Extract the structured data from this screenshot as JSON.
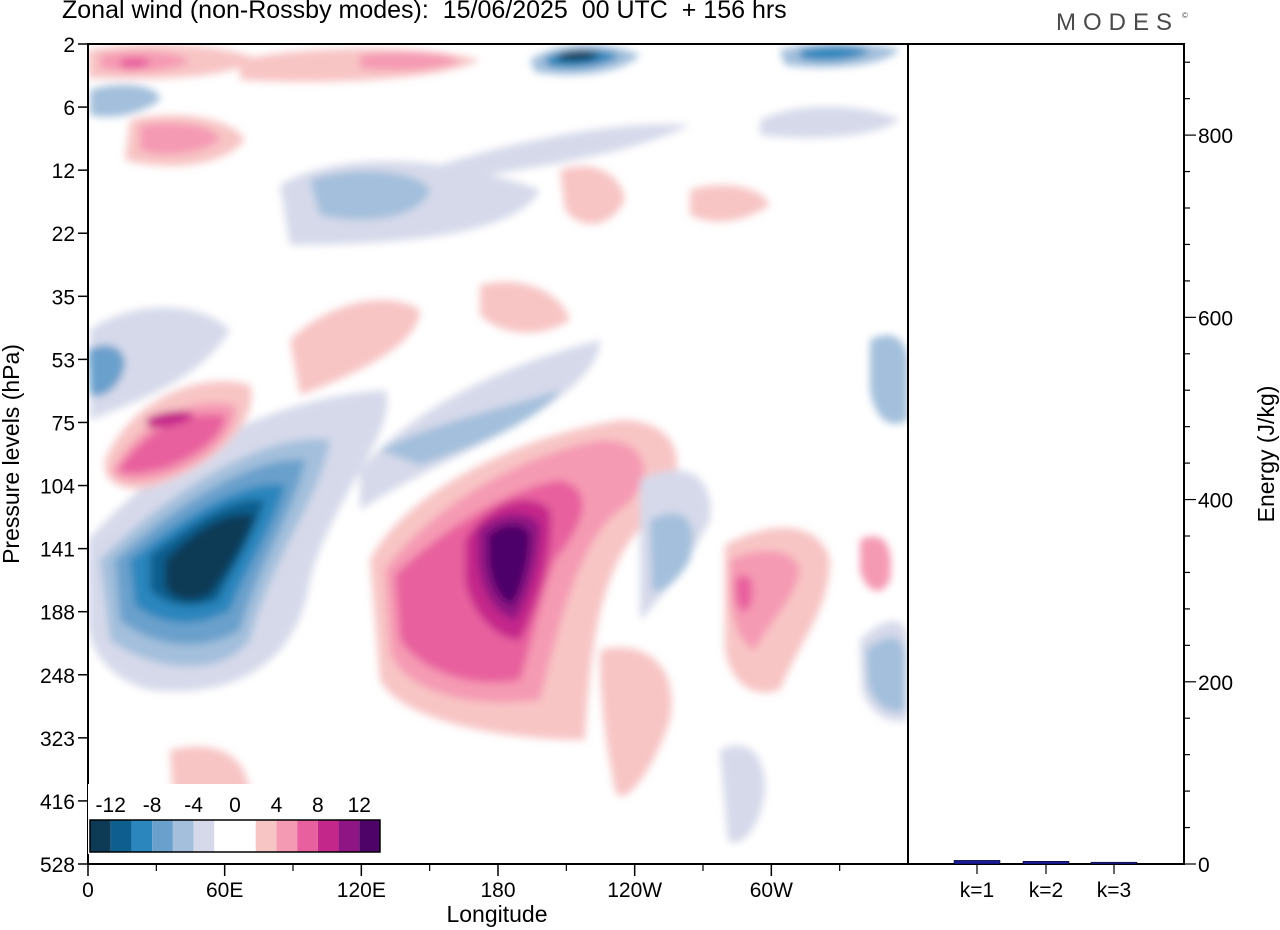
{
  "title": "Zonal wind (non-Rossby modes):  15/06/2025  00 UTC  + 156 hrs",
  "brand": "MODES",
  "brand_mark": "©",
  "colors": {
    "scale": [
      "#0d3b56",
      "#0e5f8f",
      "#2a86bd",
      "#6aa0cc",
      "#a3bfdc",
      "#d6d9ea",
      "#ffffff",
      "#ffffff",
      "#f8c5c5",
      "#f59ab3",
      "#e8609e",
      "#c4278a",
      "#8e1583",
      "#4e0369"
    ],
    "bar": "#1a1a9e"
  },
  "chart_data": [
    {
      "type": "heatmap",
      "title": "Zonal wind (non-Rossby modes):  15/06/2025  00 UTC  + 156 hrs",
      "xlabel": "Longitude",
      "ylabel": "Pressure levels (hPa)",
      "xticks": [
        "0",
        "60E",
        "120E",
        "180",
        "120W",
        "60W"
      ],
      "yticks": [
        "2",
        "6",
        "12",
        "22",
        "35",
        "53",
        "75",
        "104",
        "141",
        "188",
        "248",
        "323",
        "416",
        "528"
      ],
      "colorbar_labels": [
        "-12",
        "-8",
        "-4",
        "0",
        "4",
        "8",
        "12"
      ],
      "colorbar_levels": [
        -14,
        -12,
        -10,
        -8,
        -6,
        -4,
        -2,
        0,
        2,
        4,
        6,
        8,
        10,
        12,
        14
      ],
      "features": [
        {
          "lon": 55,
          "level": "141",
          "value": -14
        },
        {
          "lon": 45,
          "level": "75",
          "value": 10
        },
        {
          "lon": 190,
          "level": "141",
          "value": 14
        },
        {
          "lon": 150,
          "level": "188",
          "value": 8
        },
        {
          "lon": 255,
          "level": "188",
          "value": 8
        },
        {
          "lon": 355,
          "level": "248",
          "value": -6
        },
        {
          "lon": 205,
          "level": "2",
          "value": -10
        },
        {
          "lon": 105,
          "level": "16",
          "value": -4
        },
        {
          "lon": 0,
          "level": "53",
          "value": -6
        }
      ]
    },
    {
      "type": "bar",
      "categories": [
        "k=1",
        "k=2",
        "k=3"
      ],
      "values": [
        4,
        3,
        2
      ],
      "ylabel": "Energy (J/kg)",
      "ylim": [
        0,
        900
      ],
      "yticks": [
        0,
        200,
        400,
        600,
        800
      ]
    }
  ]
}
